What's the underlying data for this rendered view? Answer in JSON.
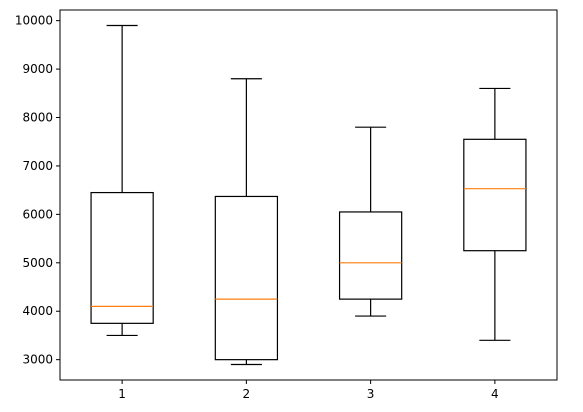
{
  "chart_data": {
    "type": "boxplot",
    "categories": [
      "1",
      "2",
      "3",
      "4"
    ],
    "boxes": [
      {
        "label": "1",
        "whisker_low": 3500,
        "q1": 3750,
        "median": 4100,
        "q3": 6450,
        "whisker_high": 9900
      },
      {
        "label": "2",
        "whisker_low": 2900,
        "q1": 3000,
        "median": 4250,
        "q3": 6370,
        "whisker_high": 8800
      },
      {
        "label": "3",
        "whisker_low": 3900,
        "q1": 4250,
        "median": 5000,
        "q3": 6050,
        "whisker_high": 7800
      },
      {
        "label": "4",
        "whisker_low": 3400,
        "q1": 5250,
        "median": 6530,
        "q3": 7550,
        "whisker_high": 8600
      }
    ],
    "ylim": [
      2580,
      10220
    ],
    "yticks": [
      3000,
      4000,
      5000,
      6000,
      7000,
      8000,
      9000,
      10000
    ],
    "ytick_labels": [
      "3000",
      "4000",
      "5000",
      "6000",
      "7000",
      "8000",
      "9000",
      "10000"
    ],
    "grid": false,
    "colors": {
      "box": "#000000",
      "median": "#ff7f0e"
    }
  }
}
